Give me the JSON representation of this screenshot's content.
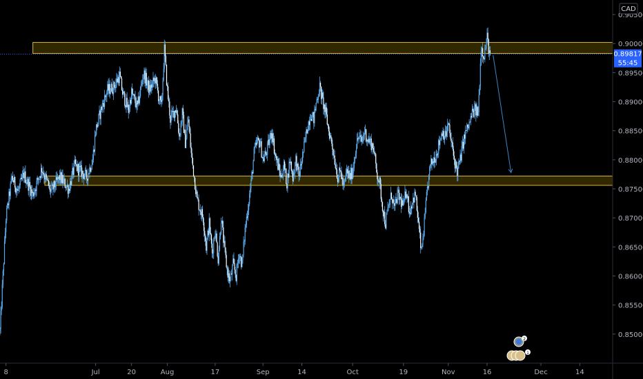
{
  "chart_data": {
    "type": "candlestick",
    "title": "",
    "xlabel": "",
    "ylabel": "",
    "currency": "CAD",
    "ylim": [
      0.845,
      0.9075
    ],
    "y_ticks": [
      "0.90500",
      "0.90000",
      "0.89500",
      "0.89000",
      "0.88500",
      "0.88000",
      "0.87500",
      "0.87000",
      "0.86500",
      "0.86000",
      "0.85500",
      "0.85000"
    ],
    "y_tick_values": [
      0.905,
      0.9,
      0.895,
      0.89,
      0.885,
      0.88,
      0.875,
      0.87,
      0.865,
      0.86,
      0.855,
      0.85
    ],
    "x_tick_labels": [
      "8",
      "Jul",
      "20",
      "Aug",
      "17",
      "Sep",
      "14",
      "Oct",
      "19",
      "Nov",
      "16",
      "Dec",
      "14"
    ],
    "x_tick_days": [
      -23,
      7,
      19,
      31,
      47,
      63,
      76,
      93,
      110,
      125,
      138,
      156,
      169
    ],
    "x_range_days": [
      -25,
      180
    ],
    "grid": false,
    "current_price": "0.89817",
    "current_price_value": 0.89817,
    "countdown": "55:45",
    "price_path": [
      [
        -25,
        0.8505
      ],
      [
        -23,
        0.87
      ],
      [
        -21,
        0.877
      ],
      [
        -19,
        0.8745
      ],
      [
        -17,
        0.8775
      ],
      [
        -14,
        0.874
      ],
      [
        -11,
        0.8785
      ],
      [
        -8,
        0.8745
      ],
      [
        -5,
        0.877
      ],
      [
        -2,
        0.875
      ],
      [
        0,
        0.879
      ],
      [
        2,
        0.878
      ],
      [
        4,
        0.877
      ],
      [
        6,
        0.88
      ],
      [
        7,
        0.885
      ],
      [
        9,
        0.889
      ],
      [
        11,
        0.892
      ],
      [
        13,
        0.8925
      ],
      [
        15,
        0.8945
      ],
      [
        16,
        0.8915
      ],
      [
        18,
        0.8885
      ],
      [
        19,
        0.8915
      ],
      [
        21,
        0.889
      ],
      [
        23,
        0.895
      ],
      [
        25,
        0.892
      ],
      [
        27,
        0.894
      ],
      [
        28,
        0.891
      ],
      [
        29,
        0.889
      ],
      [
        30,
        0.899
      ],
      [
        31,
        0.892
      ],
      [
        32,
        0.887
      ],
      [
        34,
        0.889
      ],
      [
        35,
        0.884
      ],
      [
        36,
        0.888
      ],
      [
        37,
        0.883
      ],
      [
        38,
        0.887
      ],
      [
        39,
        0.881
      ],
      [
        40,
        0.877
      ],
      [
        41,
        0.873
      ],
      [
        43,
        0.87
      ],
      [
        44,
        0.865
      ],
      [
        45,
        0.869
      ],
      [
        46,
        0.864
      ],
      [
        47,
        0.868
      ],
      [
        48,
        0.863
      ],
      [
        49,
        0.87
      ],
      [
        50,
        0.865
      ],
      [
        51,
        0.861
      ],
      [
        52,
        0.859
      ],
      [
        53,
        0.862
      ],
      [
        54,
        0.86
      ],
      [
        55,
        0.864
      ],
      [
        56,
        0.862
      ],
      [
        57,
        0.868
      ],
      [
        58,
        0.872
      ],
      [
        59,
        0.876
      ],
      [
        60,
        0.881
      ],
      [
        61,
        0.883
      ],
      [
        62,
        0.883
      ],
      [
        63,
        0.88
      ],
      [
        64,
        0.881
      ],
      [
        66,
        0.885
      ],
      [
        67,
        0.881
      ],
      [
        68,
        0.879
      ],
      [
        69,
        0.877
      ],
      [
        70,
        0.879
      ],
      [
        71,
        0.876
      ],
      [
        72,
        0.88
      ],
      [
        73,
        0.877
      ],
      [
        74,
        0.88
      ],
      [
        75,
        0.877
      ],
      [
        76,
        0.88
      ],
      [
        77,
        0.883
      ],
      [
        78,
        0.886
      ],
      [
        79,
        0.888
      ],
      [
        80,
        0.887
      ],
      [
        81,
        0.8905
      ],
      [
        82,
        0.8925
      ],
      [
        83,
        0.89
      ],
      [
        84,
        0.888
      ],
      [
        85,
        0.885
      ],
      [
        86,
        0.883
      ],
      [
        87,
        0.88
      ],
      [
        88,
        0.877
      ],
      [
        89,
        0.878
      ],
      [
        90,
        0.875
      ],
      [
        91,
        0.878
      ],
      [
        92,
        0.877
      ],
      [
        93,
        0.878
      ],
      [
        94,
        0.882
      ],
      [
        95,
        0.884
      ],
      [
        96,
        0.883
      ],
      [
        97,
        0.885
      ],
      [
        98,
        0.8835
      ],
      [
        99,
        0.883
      ],
      [
        100,
        0.882
      ],
      [
        101,
        0.878
      ],
      [
        102,
        0.876
      ],
      [
        103,
        0.872
      ],
      [
        104,
        0.869
      ],
      [
        105,
        0.872
      ],
      [
        106,
        0.874
      ],
      [
        107,
        0.8715
      ],
      [
        108,
        0.874
      ],
      [
        109,
        0.873
      ],
      [
        110,
        0.872
      ],
      [
        111,
        0.875
      ],
      [
        112,
        0.871
      ],
      [
        113,
        0.873
      ],
      [
        114,
        0.874
      ],
      [
        115,
        0.869
      ],
      [
        116,
        0.864
      ],
      [
        117,
        0.869
      ],
      [
        118,
        0.875
      ],
      [
        119,
        0.879
      ],
      [
        120,
        0.88
      ],
      [
        121,
        0.881
      ],
      [
        122,
        0.883
      ],
      [
        123,
        0.885
      ],
      [
        124,
        0.884
      ],
      [
        125,
        0.886
      ],
      [
        126,
        0.883
      ],
      [
        127,
        0.88
      ],
      [
        128,
        0.878
      ],
      [
        129,
        0.88
      ],
      [
        130,
        0.883
      ],
      [
        131,
        0.885
      ],
      [
        132,
        0.886
      ],
      [
        133,
        0.888
      ],
      [
        134,
        0.8885
      ],
      [
        135,
        0.888
      ],
      [
        136,
        0.8995
      ],
      [
        137,
        0.898
      ],
      [
        138,
        0.901
      ],
      [
        139,
        0.8975
      ]
    ],
    "zones": [
      {
        "low": 0.8983,
        "high": 0.9002,
        "start_day": -14
      },
      {
        "low": 0.8756,
        "high": 0.8772,
        "start_day": -10
      }
    ],
    "projection": {
      "from": [
        140,
        0.898
      ],
      "to": [
        146,
        0.8778
      ]
    },
    "colors": {
      "candle": "#5ba9ea",
      "zone_border": "#d7b441",
      "zone_fill": "#3a2f00",
      "price_badge": "#2962ff",
      "projection": "#3b86c6",
      "axis_text": "#b2b5be",
      "border": "#2a2e39"
    }
  }
}
